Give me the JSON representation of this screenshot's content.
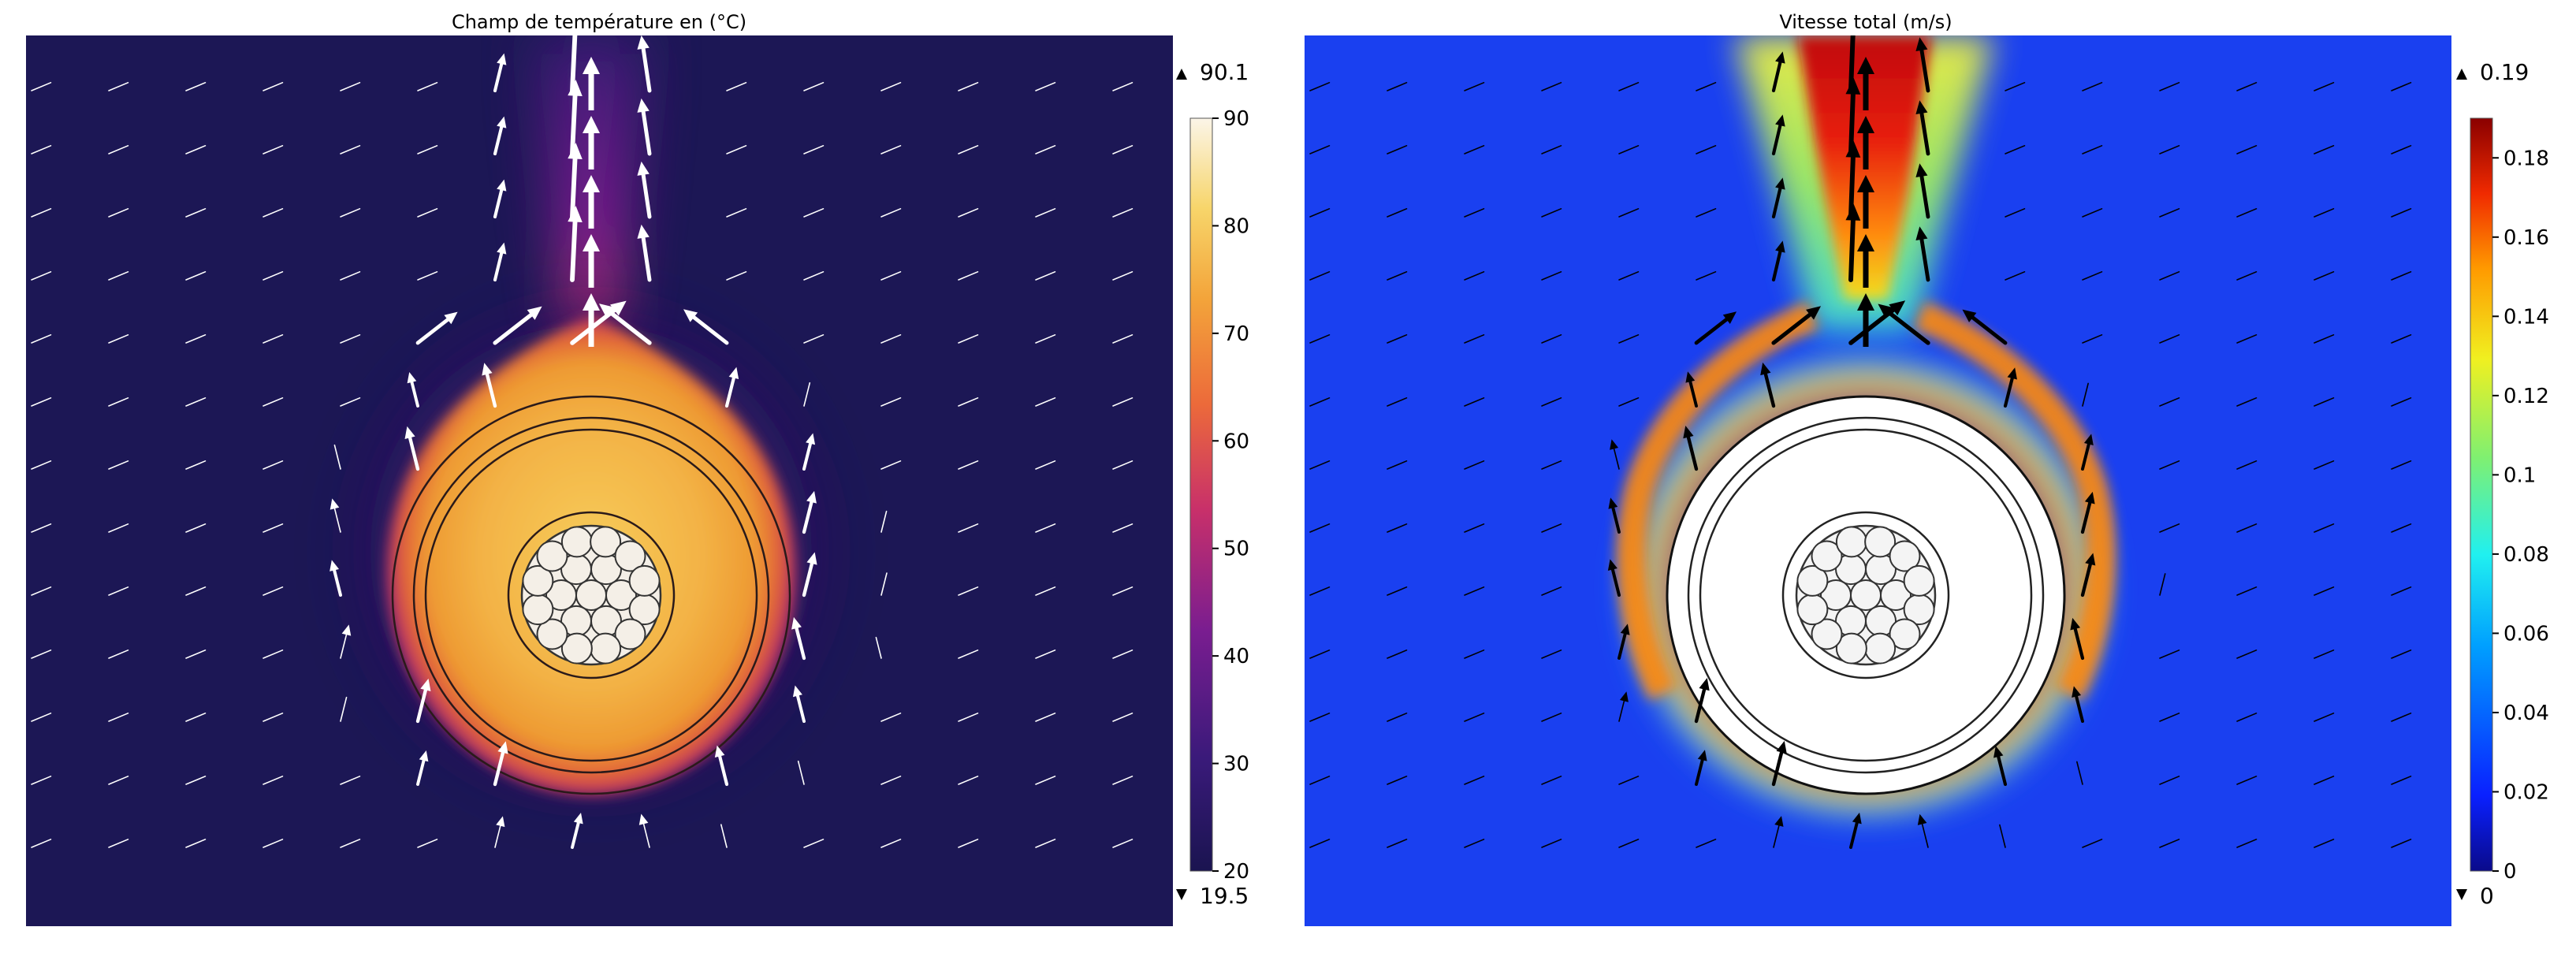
{
  "chart_data": [
    {
      "type": "heatmap",
      "title": "Champ de température en (°C)",
      "field": "temperature",
      "colormap": "thermal (dark indigo → magenta → orange → cream)",
      "colorbar_ticks": [
        "20",
        "30",
        "40",
        "50",
        "60",
        "70",
        "80",
        "90"
      ],
      "colorbar_range": [
        20,
        90
      ],
      "max_label": "90.1",
      "min_label": "19.5",
      "max_value": 90.1,
      "min_value": 19.5,
      "arrow_color": "#ffffff",
      "features": [
        "circular cable cross-section with stranded conductor",
        "hot plume rising above cable",
        "velocity arrows"
      ]
    },
    {
      "type": "heatmap",
      "title": "Vitesse total (m/s)",
      "field": "velocity magnitude",
      "colormap": "rainbow (dark blue → cyan → yellow → dark red)",
      "colorbar_ticks": [
        "0",
        "0.02",
        "0.04",
        "0.06",
        "0.08",
        "0.1",
        "0.12",
        "0.14",
        "0.16",
        "0.18"
      ],
      "colorbar_range": [
        0,
        0.19
      ],
      "max_label": "0.19",
      "min_label": "0",
      "max_value": 0.19,
      "min_value": 0,
      "arrow_color": "#000000",
      "features": [
        "cable shown as white disk (solid, no flow)",
        "convective plume above cable",
        "velocity arrows"
      ]
    }
  ]
}
